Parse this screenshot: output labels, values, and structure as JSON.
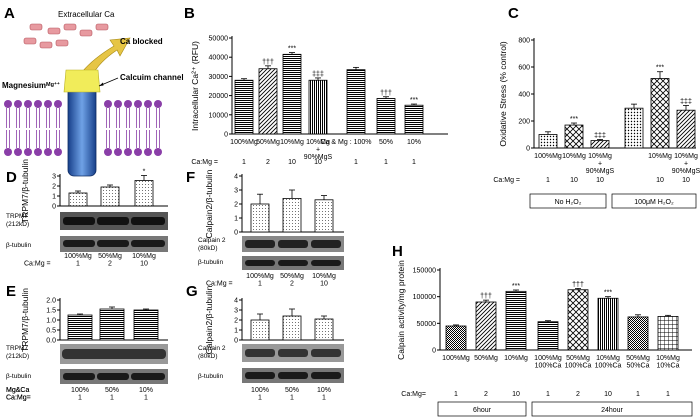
{
  "panels": {
    "A": {
      "letter": "A",
      "labels": {
        "extracellular": "Extracellular Ca",
        "ca_blocked": "Ca blocked",
        "channel": "Calcuim channel",
        "magnesium": "Magnesium",
        "mg_symbol": "Mg⁺⁺"
      }
    },
    "B": {
      "letter": "B"
    },
    "C": {
      "letter": "C",
      "group1": "No H₂O₂",
      "group2": "100μM H₂O₂"
    },
    "D": {
      "letter": "D",
      "blot1": "TRPM7\n(212kD)",
      "blot1_a": "TRPM7",
      "blot1_b": "(212kD)",
      "blot2": "β-tubulin"
    },
    "E": {
      "letter": "E",
      "blot1_a": "TRPM7",
      "blot1_b": "(212kD)",
      "blot2": "β-tubulin"
    },
    "F": {
      "letter": "F",
      "blot1_a": "Calpain 2",
      "blot1_b": "(80kD)",
      "blot2": "β-tubulin"
    },
    "G": {
      "letter": "G",
      "blot1_a": "Calpain 2",
      "blot1_b": "(80kD)",
      "blot2": "β-tubulin"
    },
    "H": {
      "letter": "H",
      "group1": "6hour",
      "group2": "24hour"
    }
  },
  "chart_data": [
    {
      "id": "B",
      "type": "bar",
      "ylabel": "Intracellular Ca²⁺ (RFU)",
      "ylim": [
        0,
        50000
      ],
      "yticks": [
        "0",
        "10000",
        "20000",
        "30000",
        "40000",
        "50000"
      ],
      "ratio_label": "Ca:Mg =",
      "ca_mg_label": "Ca & Mg : 100%",
      "categories": [
        "100%Mg",
        "50%Mg",
        "10%Mg",
        "10%Mg\n+\n90%MgS",
        "",
        "50%",
        "10%"
      ],
      "cat_lines": [
        [
          "100%Mg"
        ],
        [
          "50%Mg"
        ],
        [
          "10%Mg"
        ],
        [
          "10%Mg",
          "+",
          "90%MgS"
        ],
        [
          "Ca & Mg : 100%"
        ],
        [
          "50%"
        ],
        [
          "10%"
        ]
      ],
      "ratios": [
        "1",
        "2",
        "10",
        "10",
        "1",
        "1",
        "1"
      ],
      "values": [
        28000,
        34000,
        41500,
        28000,
        33500,
        18500,
        15000
      ],
      "errors": [
        800,
        1500,
        900,
        1200,
        1200,
        900,
        600
      ],
      "annotations": [
        "",
        "†††",
        "***",
        "‡‡‡",
        "",
        "†††",
        "***"
      ]
    },
    {
      "id": "C",
      "type": "bar",
      "ylabel": "Oxidative Stress (% control)",
      "ylim": [
        0,
        800
      ],
      "yticks": [
        "0",
        "200",
        "400",
        "600",
        "800"
      ],
      "ratio_label": "Ca:Mg =",
      "cat_lines": [
        [
          "100%Mg"
        ],
        [
          "10%Mg"
        ],
        [
          "10%Mg",
          "+",
          "90%MgS"
        ],
        [
          ""
        ],
        [
          "10%Mg"
        ],
        [
          "10%Mg",
          "+",
          "90%MgS"
        ]
      ],
      "ratios": [
        "1",
        "10",
        "10",
        "",
        "10",
        "10"
      ],
      "values": [
        100,
        170,
        55,
        295,
        515,
        280
      ],
      "errors": [
        20,
        15,
        8,
        30,
        50,
        35
      ],
      "annotations": [
        "",
        "***",
        "‡‡‡",
        "",
        "***",
        "‡‡‡"
      ]
    },
    {
      "id": "D",
      "type": "bar",
      "ylabel": "TRPM7/β-tubulin",
      "ylim": [
        0,
        3
      ],
      "yticks": [
        "0",
        "1",
        "2",
        "3"
      ],
      "cat_lines": [
        [
          "100%Mg",
          "1"
        ],
        [
          "50%Mg",
          "2"
        ],
        [
          "10%Mg",
          "10"
        ]
      ],
      "ratio_label": "Ca:Mg =",
      "values": [
        1.3,
        1.9,
        2.55
      ],
      "errors": [
        0.2,
        0.2,
        0.5
      ],
      "annotations": [
        "",
        "",
        "*"
      ]
    },
    {
      "id": "E",
      "type": "bar",
      "ylabel": "TRPM7/β-tubulin",
      "ylim": [
        0,
        2.0
      ],
      "yticks": [
        "0.0",
        "0.5",
        "1.0",
        "1.5",
        "2.0"
      ],
      "row1_label": "Mg&Ca",
      "row2_label": "Ca:Mg=",
      "cat_lines": [
        [
          "100%",
          "1"
        ],
        [
          "50%",
          "1"
        ],
        [
          "10%",
          "1"
        ]
      ],
      "values": [
        1.25,
        1.55,
        1.5
      ],
      "errors": [
        0.05,
        0.1,
        0.05
      ],
      "annotations": [
        "",
        "",
        ""
      ]
    },
    {
      "id": "F",
      "type": "bar",
      "ylabel": "Calpain2/β-tubulin",
      "ylim": [
        0,
        4
      ],
      "yticks": [
        "0",
        "1",
        "2",
        "3",
        "4"
      ],
      "ratio_label": "Ca:Mg =",
      "cat_lines": [
        [
          "100%Mg",
          "1"
        ],
        [
          "50%Mg",
          "2"
        ],
        [
          "10%Mg",
          "10"
        ]
      ],
      "values": [
        2.0,
        2.4,
        2.3
      ],
      "errors": [
        0.7,
        0.6,
        0.3
      ],
      "annotations": [
        "",
        "",
        ""
      ]
    },
    {
      "id": "G",
      "type": "bar",
      "ylabel": "Calpain2/β-tubulin",
      "ylim": [
        0,
        4
      ],
      "yticks": [
        "0",
        "1",
        "2",
        "3",
        "4"
      ],
      "row1_label": "Mg&Ca",
      "row2_label": "Ca:Mg=",
      "cat_lines": [
        [
          "100%",
          "1"
        ],
        [
          "50%",
          "1"
        ],
        [
          "10%",
          "1"
        ]
      ],
      "values": [
        2.0,
        2.4,
        2.1
      ],
      "errors": [
        0.6,
        0.7,
        0.3
      ],
      "annotations": [
        "",
        "",
        ""
      ]
    },
    {
      "id": "H",
      "type": "bar",
      "ylabel": "Calpain activity/mg protein",
      "ylim": [
        0,
        150000
      ],
      "yticks": [
        "0",
        "50000",
        "100000",
        "150000"
      ],
      "ratio_label": "Ca:Mg=",
      "cat_lines": [
        [
          "100%Mg"
        ],
        [
          "50%Mg"
        ],
        [
          "10%Mg"
        ],
        [
          "100%Mg",
          "100%Ca"
        ],
        [
          "50%Mg",
          "100%Ca"
        ],
        [
          "10%Mg",
          "100%Ca"
        ],
        [
          "50%Mg",
          "50%Ca"
        ],
        [
          "10%Mg",
          "10%Ca"
        ]
      ],
      "ratios": [
        "1",
        "2",
        "10",
        "1",
        "2",
        "10",
        "1",
        "1"
      ],
      "values": [
        45000,
        90000,
        110000,
        53000,
        113000,
        97000,
        62000,
        63000
      ],
      "errors": [
        2000,
        3500,
        2500,
        2000,
        2500,
        3000,
        4000,
        2000
      ],
      "annotations": [
        "",
        "†††",
        "***",
        "",
        "†††",
        "***",
        "",
        ""
      ]
    }
  ]
}
